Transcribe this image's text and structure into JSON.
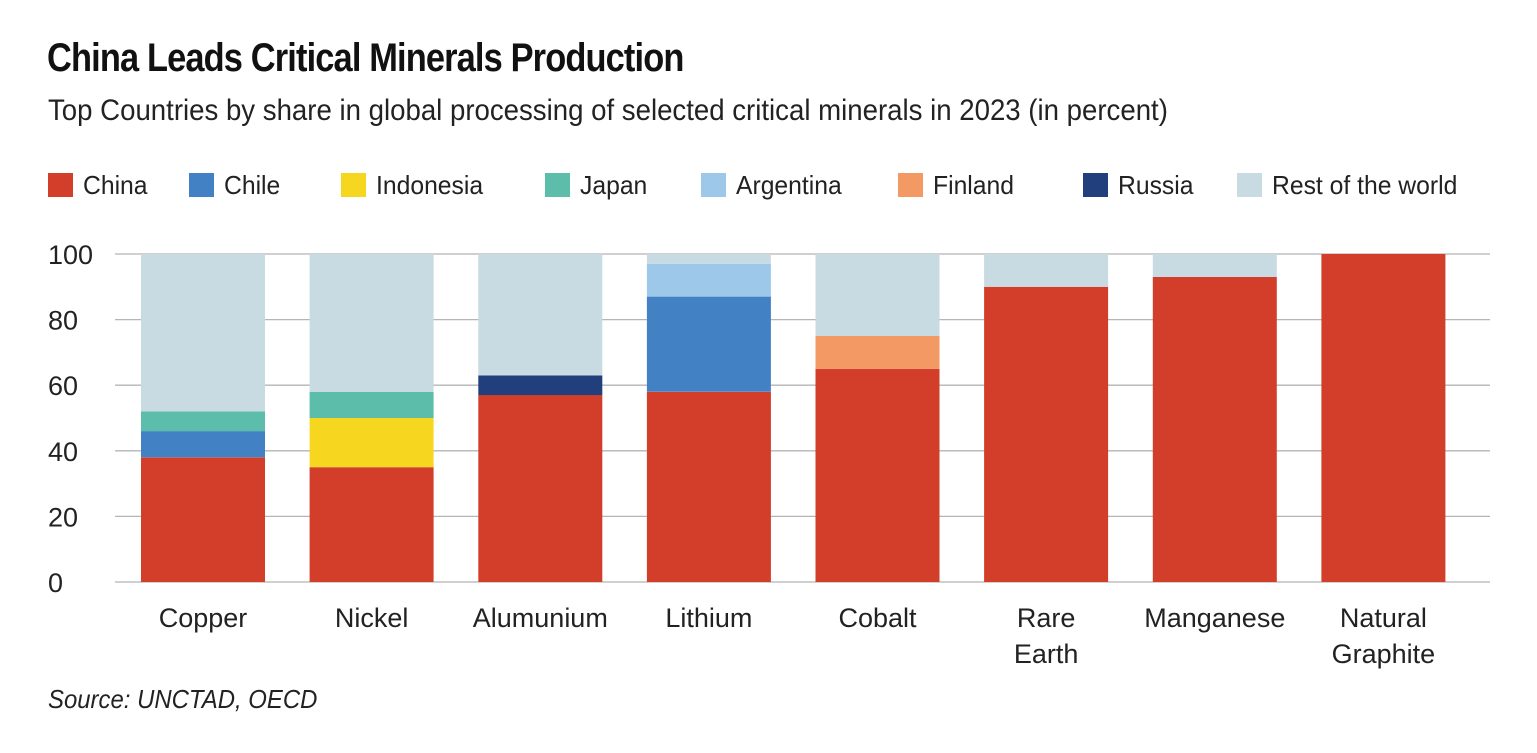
{
  "chart_data": {
    "type": "bar",
    "stacked": true,
    "title": "China Leads Critical Minerals Production",
    "subtitle": "Top Countries by share in global processing of selected critical minerals in 2023 (in percent)",
    "source": "Source: UNCTAD, OECD",
    "xlabel": "",
    "ylabel": "",
    "ylim": [
      0,
      100
    ],
    "yticks": [
      0,
      20,
      40,
      60,
      80,
      100
    ],
    "grid": true,
    "legend_position": "top",
    "categories": [
      [
        "Copper"
      ],
      [
        "Nickel"
      ],
      [
        "Alumunium"
      ],
      [
        "Lithium"
      ],
      [
        "Cobalt"
      ],
      [
        "Rare",
        "Earth"
      ],
      [
        "Manganese"
      ],
      [
        "Natural",
        "Graphite"
      ]
    ],
    "series": [
      {
        "name": "China",
        "color": "#d33e2a",
        "values": [
          38,
          35,
          57,
          58,
          65,
          90,
          93,
          100
        ]
      },
      {
        "name": "Chile",
        "color": "#4281c4",
        "values": [
          8,
          0,
          0,
          29,
          0,
          0,
          0,
          0
        ]
      },
      {
        "name": "Indonesia",
        "color": "#f7d620",
        "values": [
          0,
          15,
          0,
          0,
          0,
          0,
          0,
          0
        ]
      },
      {
        "name": "Japan",
        "color": "#5bbdaa",
        "values": [
          6,
          8,
          0,
          0,
          0,
          0,
          0,
          0
        ]
      },
      {
        "name": "Argentina",
        "color": "#9ec8ea",
        "values": [
          0,
          0,
          0,
          10,
          0,
          0,
          0,
          0
        ]
      },
      {
        "name": "Finland",
        "color": "#f39a64",
        "values": [
          0,
          0,
          0,
          0,
          10,
          0,
          0,
          0
        ]
      },
      {
        "name": "Russia",
        "color": "#223f7d",
        "values": [
          0,
          0,
          6,
          0,
          0,
          0,
          0,
          0
        ]
      },
      {
        "name": "Rest of the world",
        "color": "#c8dae2",
        "values": [
          48,
          42,
          37,
          3,
          25,
          10,
          7,
          0
        ]
      }
    ]
  }
}
